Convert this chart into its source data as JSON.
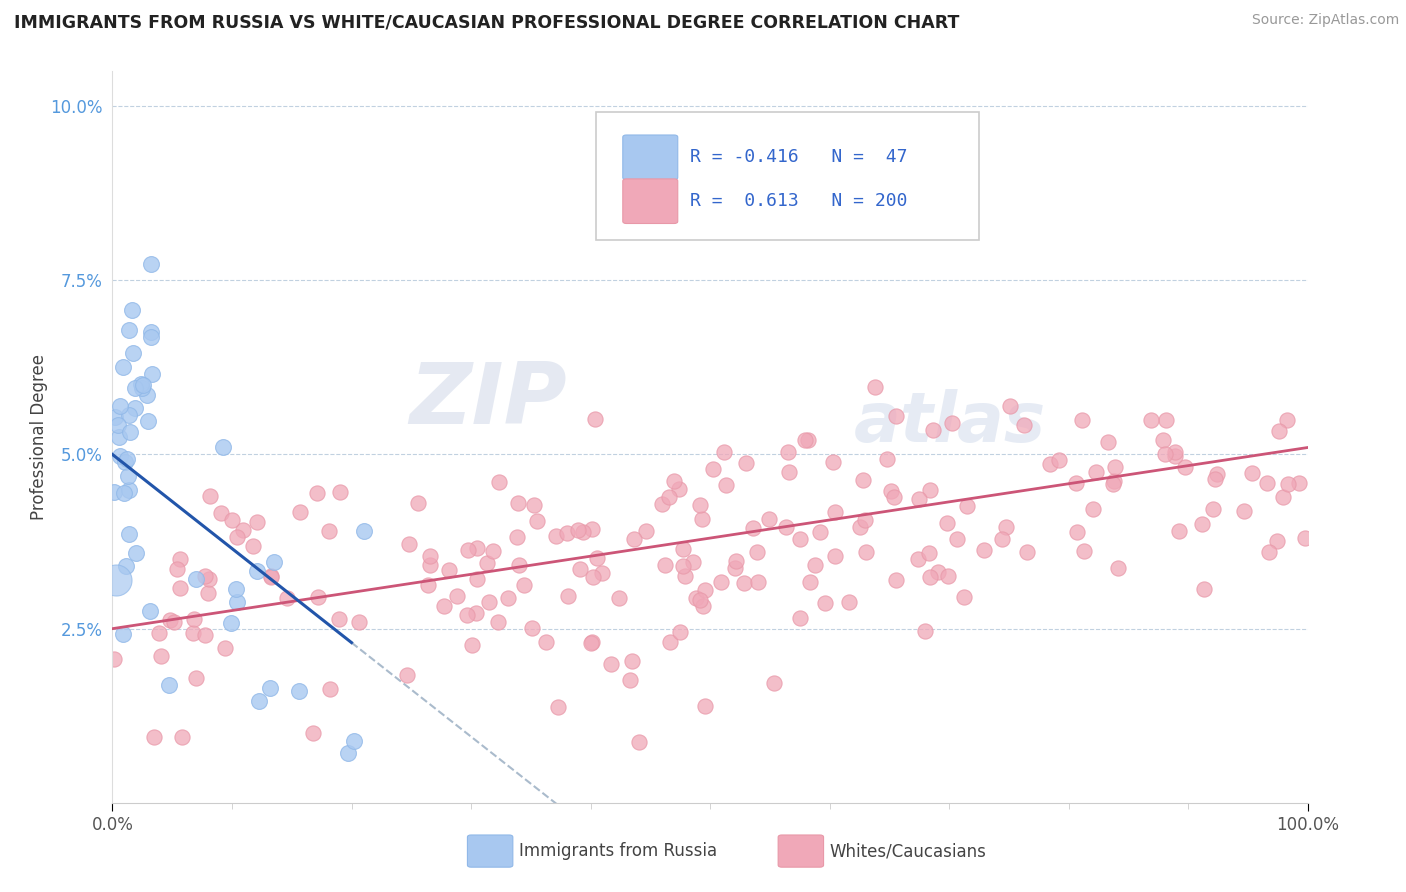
{
  "title": "IMMIGRANTS FROM RUSSIA VS WHITE/CAUCASIAN PROFESSIONAL DEGREE CORRELATION CHART",
  "source": "Source: ZipAtlas.com",
  "ylabel": "Professional Degree",
  "xlim": [
    0,
    100
  ],
  "ylim": [
    0,
    10.5
  ],
  "color_blue": "#A8C8F0",
  "color_blue_edge": "#90B8E8",
  "color_pink": "#F0A8B8",
  "color_pink_edge": "#E898A8",
  "trend_blue": "#2255AA",
  "trend_pink": "#CC5577",
  "trend_dashed": "#AABBCC",
  "watermark_color": "#D8E0F0",
  "blue_r": "-0.416",
  "blue_n": "47",
  "pink_r": "0.613",
  "pink_n": "200",
  "legend_text_color": "#3366CC",
  "tick_color_y": "#5599DD",
  "tick_color_x": "#555555",
  "grid_color": "#BBCCDD"
}
